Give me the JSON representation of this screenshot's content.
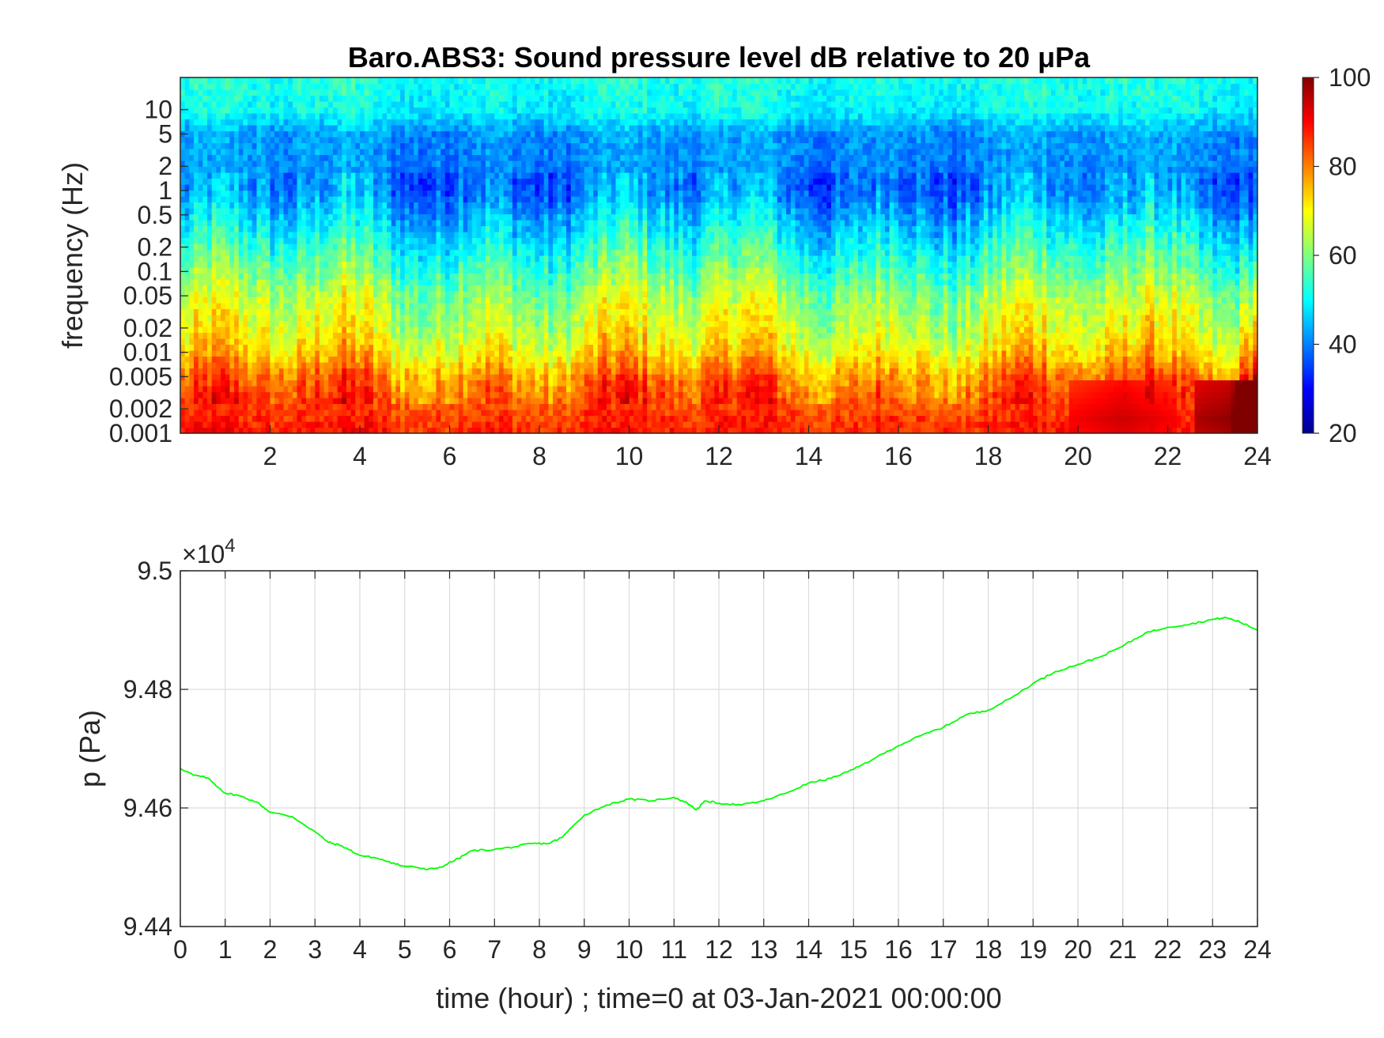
{
  "chart_data": [
    {
      "type": "heatmap",
      "title": "Baro.ABS3: Sound pressure level dB relative to 20 μPa",
      "xlabel": "",
      "ylabel": "frequency (Hz)",
      "y_scale": "log",
      "xlim": [
        0,
        24
      ],
      "ylim": [
        0.001,
        25
      ],
      "x_ticks": [
        2,
        4,
        6,
        8,
        10,
        12,
        14,
        16,
        18,
        20,
        22,
        24
      ],
      "x_tick_labels": [
        "2",
        "4",
        "6",
        "8",
        "10",
        "12",
        "14",
        "16",
        "18",
        "20",
        "22",
        "24"
      ],
      "y_ticks": [
        0.001,
        0.002,
        0.005,
        0.01,
        0.02,
        0.05,
        0.1,
        0.2,
        0.5,
        1,
        2,
        5,
        10
      ],
      "y_tick_labels": [
        "0.001",
        "0.002",
        "0.005",
        "0.01",
        "0.02",
        "0.05",
        "0.1",
        "0.2",
        "0.5",
        "1",
        "2",
        "5",
        "10"
      ],
      "colormap": "jet",
      "clim": [
        20,
        100
      ],
      "colorbar_ticks": [
        20,
        40,
        60,
        80,
        100
      ],
      "colorbar_tick_labels": [
        "20",
        "40",
        "60",
        "80",
        "100"
      ],
      "level_profile_by_frequency": {
        "frequency_hz": [
          0.001,
          0.002,
          0.005,
          0.01,
          0.02,
          0.05,
          0.1,
          0.2,
          0.5,
          1,
          2,
          5,
          10,
          25
        ],
        "spl_db": [
          88,
          85,
          80,
          72,
          67,
          63,
          57,
          52,
          45,
          40,
          41,
          42,
          50,
          52
        ]
      },
      "notable_features": [
        {
          "x_hour": 21,
          "frequency_hz": 0.0015,
          "spl_db": 94
        },
        {
          "x_hour": 23.8,
          "frequency_hz": 0.0015,
          "spl_db": 100
        }
      ]
    },
    {
      "type": "line",
      "xlabel": "time (hour) ; time=0 at 03-Jan-2021 00:00:00",
      "ylabel": "p (Pa)",
      "y_exponent_label": "×10",
      "y_exponent_power": "4",
      "xlim": [
        0,
        24
      ],
      "ylim": [
        94400,
        95000
      ],
      "x_ticks": [
        0,
        1,
        2,
        3,
        4,
        5,
        6,
        7,
        8,
        9,
        10,
        11,
        12,
        13,
        14,
        15,
        16,
        17,
        18,
        19,
        20,
        21,
        22,
        23,
        24
      ],
      "x_tick_labels": [
        "0",
        "1",
        "2",
        "3",
        "4",
        "5",
        "6",
        "7",
        "8",
        "9",
        "10",
        "11",
        "12",
        "13",
        "14",
        "15",
        "16",
        "17",
        "18",
        "19",
        "20",
        "21",
        "22",
        "23",
        "24"
      ],
      "y_ticks": [
        94400,
        94600,
        94800,
        95000
      ],
      "y_tick_labels": [
        "9.44",
        "9.46",
        "9.48",
        "9.5"
      ],
      "grid": true,
      "line_color": "#00ff00",
      "series": [
        {
          "x": [
            0,
            0.3,
            0.6,
            1.0,
            1.3,
            1.7,
            2.0,
            2.5,
            3.0,
            3.3,
            3.6,
            4.0,
            4.4,
            4.8,
            5.0,
            5.2,
            5.5,
            5.8,
            6.2,
            6.5,
            7.0,
            7.5,
            7.8,
            8.2,
            8.5,
            9.0,
            9.5,
            10.0,
            10.5,
            11.0,
            11.3,
            11.5,
            11.7,
            12.0,
            12.5,
            13.0,
            13.5,
            14.0,
            14.5,
            15.0,
            15.5,
            16.0,
            16.5,
            17.0,
            17.5,
            18.0,
            18.5,
            19.0,
            19.5,
            20.0,
            20.5,
            21.0,
            21.5,
            22.0,
            22.5,
            23.0,
            23.3,
            23.6,
            24.0
          ],
          "y": [
            94667,
            94655,
            94651,
            94625,
            94621,
            94610,
            94593,
            94585,
            94560,
            94542,
            94536,
            94520,
            94515,
            94505,
            94502,
            94501,
            94496,
            94500,
            94515,
            94528,
            94530,
            94535,
            94540,
            94540,
            94550,
            94588,
            94605,
            94615,
            94612,
            94618,
            94608,
            94597,
            94612,
            94608,
            94605,
            94612,
            94625,
            94642,
            94650,
            94665,
            94685,
            94705,
            94722,
            94736,
            94757,
            94765,
            94785,
            94810,
            94830,
            94842,
            94855,
            94873,
            94895,
            94905,
            94910,
            94918,
            94921,
            94914,
            94900
          ]
        }
      ]
    }
  ]
}
